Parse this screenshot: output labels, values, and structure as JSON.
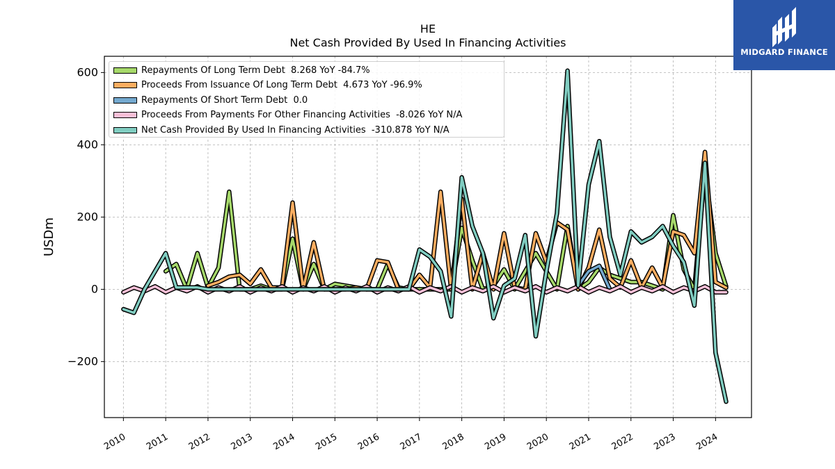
{
  "header": {
    "title_line1": "HE",
    "title_line2": "Net Cash Provided By Used In Financing Activities"
  },
  "logo": {
    "text": "MIDGARD FINANCE",
    "background": "#2a56a8"
  },
  "chart_data": {
    "type": "line",
    "title": "HE\nNet Cash Provided By Used In Financing Activities",
    "xlabel": "",
    "ylabel": "USDm",
    "xlim": [
      2009.55,
      2024.85
    ],
    "ylim": [
      -355,
      645
    ],
    "x_ticks": [
      "2010",
      "2011",
      "2012",
      "2013",
      "2014",
      "2015",
      "2016",
      "2017",
      "2018",
      "2019",
      "2020",
      "2021",
      "2022",
      "2023",
      "2024"
    ],
    "y_ticks": [
      {
        "value": -200,
        "label": "−200"
      },
      {
        "value": 0,
        "label": "0"
      },
      {
        "value": 200,
        "label": "200"
      },
      {
        "value": 400,
        "label": "400"
      },
      {
        "value": 600,
        "label": "600"
      }
    ],
    "grid": true,
    "legend_position": "top-left",
    "series": [
      {
        "name": "Repayments Of Long Term Debt",
        "legend_label": "Repayments Of Long Term Debt  8.268 YoY -84.7%",
        "color": "#a6d96a",
        "points": [
          [
            2011.0,
            50
          ],
          [
            2011.25,
            70
          ],
          [
            2011.5,
            0
          ],
          [
            2011.75,
            100
          ],
          [
            2012.0,
            5
          ],
          [
            2012.25,
            60
          ],
          [
            2012.5,
            270
          ],
          [
            2012.75,
            0
          ],
          [
            2013.0,
            0
          ],
          [
            2013.25,
            10
          ],
          [
            2013.5,
            0
          ],
          [
            2013.75,
            0
          ],
          [
            2014.0,
            140
          ],
          [
            2014.25,
            0
          ],
          [
            2014.5,
            70
          ],
          [
            2014.75,
            0
          ],
          [
            2015.0,
            15
          ],
          [
            2015.25,
            10
          ],
          [
            2015.5,
            5
          ],
          [
            2015.75,
            0
          ],
          [
            2016.0,
            0
          ],
          [
            2016.25,
            70
          ],
          [
            2016.5,
            5
          ],
          [
            2016.75,
            0
          ],
          [
            2017.0,
            0
          ],
          [
            2017.25,
            0
          ],
          [
            2017.5,
            0
          ],
          [
            2017.75,
            0
          ],
          [
            2018.0,
            170
          ],
          [
            2018.25,
            80
          ],
          [
            2018.5,
            0
          ],
          [
            2018.75,
            10
          ],
          [
            2019.0,
            55
          ],
          [
            2019.25,
            0
          ],
          [
            2019.5,
            50
          ],
          [
            2019.75,
            100
          ],
          [
            2020.0,
            50
          ],
          [
            2020.25,
            0
          ],
          [
            2020.5,
            175
          ],
          [
            2020.75,
            0
          ],
          [
            2021.0,
            20
          ],
          [
            2021.25,
            60
          ],
          [
            2021.5,
            40
          ],
          [
            2021.75,
            30
          ],
          [
            2022.0,
            20
          ],
          [
            2022.25,
            20
          ],
          [
            2022.5,
            10
          ],
          [
            2022.75,
            0
          ],
          [
            2023.0,
            205
          ],
          [
            2023.25,
            55
          ],
          [
            2023.5,
            0
          ],
          [
            2023.75,
            330
          ],
          [
            2024.0,
            100
          ],
          [
            2024.25,
            8.268
          ]
        ]
      },
      {
        "name": "Proceeds From Issuance Of Long Term Debt",
        "legend_label": "Proceeds From Issuance Of Long Term Debt  4.673 YoY -96.9%",
        "color": "#fdae61",
        "points": [
          [
            2012.0,
            10
          ],
          [
            2012.25,
            20
          ],
          [
            2012.5,
            35
          ],
          [
            2012.75,
            40
          ],
          [
            2013.0,
            15
          ],
          [
            2013.25,
            55
          ],
          [
            2013.5,
            5
          ],
          [
            2013.75,
            5
          ],
          [
            2014.0,
            240
          ],
          [
            2014.25,
            0
          ],
          [
            2014.5,
            130
          ],
          [
            2014.75,
            0
          ],
          [
            2015.0,
            0
          ],
          [
            2015.25,
            0
          ],
          [
            2015.5,
            5
          ],
          [
            2015.75,
            0
          ],
          [
            2016.0,
            80
          ],
          [
            2016.25,
            75
          ],
          [
            2016.5,
            0
          ],
          [
            2016.75,
            0
          ],
          [
            2017.0,
            40
          ],
          [
            2017.25,
            5
          ],
          [
            2017.5,
            270
          ],
          [
            2017.75,
            0
          ],
          [
            2018.0,
            250
          ],
          [
            2018.25,
            0
          ],
          [
            2018.5,
            100
          ],
          [
            2018.75,
            0
          ],
          [
            2019.0,
            155
          ],
          [
            2019.25,
            5
          ],
          [
            2019.5,
            0
          ],
          [
            2019.75,
            155
          ],
          [
            2020.0,
            75
          ],
          [
            2020.25,
            185
          ],
          [
            2020.5,
            165
          ],
          [
            2020.75,
            0
          ],
          [
            2021.0,
            60
          ],
          [
            2021.25,
            165
          ],
          [
            2021.5,
            30
          ],
          [
            2021.75,
            5
          ],
          [
            2022.0,
            80
          ],
          [
            2022.25,
            5
          ],
          [
            2022.5,
            60
          ],
          [
            2022.75,
            5
          ],
          [
            2023.0,
            160
          ],
          [
            2023.25,
            150
          ],
          [
            2023.5,
            100
          ],
          [
            2023.75,
            380
          ],
          [
            2024.0,
            20
          ],
          [
            2024.25,
            4.673
          ]
        ]
      },
      {
        "name": "Repayments Of Short Term Debt",
        "legend_label": "Repayments Of Short Term Debt  0.0",
        "color": "#74a9cf",
        "points": [
          [
            2020.75,
            10
          ],
          [
            2021.0,
            50
          ],
          [
            2021.25,
            65
          ],
          [
            2021.5,
            0
          ]
        ]
      },
      {
        "name": "Proceeds From Payments For Other Financing Activities",
        "legend_label": "Proceeds From Payments For Other Financing Activities  -8.026 YoY N/A",
        "color": "#f9c0d8",
        "points": [
          [
            2010.0,
            -8
          ],
          [
            2010.25,
            5
          ],
          [
            2010.5,
            -5
          ],
          [
            2010.75,
            8
          ],
          [
            2011.0,
            -8
          ],
          [
            2011.25,
            5
          ],
          [
            2011.5,
            -5
          ],
          [
            2011.75,
            8
          ],
          [
            2012.0,
            -8
          ],
          [
            2012.25,
            5
          ],
          [
            2012.5,
            -5
          ],
          [
            2012.75,
            8
          ],
          [
            2013.0,
            -8
          ],
          [
            2013.25,
            5
          ],
          [
            2013.5,
            -5
          ],
          [
            2013.75,
            8
          ],
          [
            2014.0,
            -8
          ],
          [
            2014.25,
            5
          ],
          [
            2014.5,
            -5
          ],
          [
            2014.75,
            8
          ],
          [
            2015.0,
            -8
          ],
          [
            2015.25,
            5
          ],
          [
            2015.5,
            -5
          ],
          [
            2015.75,
            8
          ],
          [
            2016.0,
            -8
          ],
          [
            2016.25,
            5
          ],
          [
            2016.5,
            -5
          ],
          [
            2016.75,
            8
          ],
          [
            2017.0,
            -8
          ],
          [
            2017.25,
            5
          ],
          [
            2017.5,
            -5
          ],
          [
            2017.75,
            8
          ],
          [
            2018.0,
            -8
          ],
          [
            2018.25,
            5
          ],
          [
            2018.5,
            -5
          ],
          [
            2018.75,
            8
          ],
          [
            2019.0,
            -8
          ],
          [
            2019.25,
            5
          ],
          [
            2019.5,
            -5
          ],
          [
            2019.75,
            8
          ],
          [
            2020.0,
            -8
          ],
          [
            2020.25,
            5
          ],
          [
            2020.5,
            -5
          ],
          [
            2020.75,
            8
          ],
          [
            2021.0,
            -8
          ],
          [
            2021.25,
            5
          ],
          [
            2021.5,
            -5
          ],
          [
            2021.75,
            8
          ],
          [
            2022.0,
            -8
          ],
          [
            2022.25,
            5
          ],
          [
            2022.5,
            -5
          ],
          [
            2022.75,
            8
          ],
          [
            2023.0,
            -8
          ],
          [
            2023.25,
            5
          ],
          [
            2023.5,
            -5
          ],
          [
            2023.75,
            8
          ],
          [
            2024.0,
            -8
          ],
          [
            2024.25,
            -8.026
          ]
        ]
      },
      {
        "name": "Net Cash Provided By Used In Financing Activities",
        "legend_label": "Net Cash Provided By Used In Financing Activities  -310.878 YoY N/A",
        "color": "#80cdc1",
        "points": [
          [
            2010.0,
            -55
          ],
          [
            2010.25,
            -65
          ],
          [
            2010.5,
            0
          ],
          [
            2010.75,
            50
          ],
          [
            2011.0,
            100
          ],
          [
            2011.25,
            5
          ],
          [
            2011.5,
            5
          ],
          [
            2011.75,
            5
          ],
          [
            2012.0,
            0
          ],
          [
            2012.25,
            0
          ],
          [
            2012.5,
            0
          ],
          [
            2012.75,
            0
          ],
          [
            2013.0,
            0
          ],
          [
            2013.25,
            0
          ],
          [
            2013.5,
            0
          ],
          [
            2013.75,
            0
          ],
          [
            2014.0,
            0
          ],
          [
            2014.25,
            0
          ],
          [
            2014.5,
            0
          ],
          [
            2014.75,
            0
          ],
          [
            2015.0,
            0
          ],
          [
            2015.25,
            0
          ],
          [
            2015.5,
            0
          ],
          [
            2015.75,
            0
          ],
          [
            2016.0,
            0
          ],
          [
            2016.25,
            0
          ],
          [
            2016.5,
            0
          ],
          [
            2016.75,
            0
          ],
          [
            2017.0,
            110
          ],
          [
            2017.25,
            90
          ],
          [
            2017.5,
            50
          ],
          [
            2017.75,
            -75
          ],
          [
            2018.0,
            310
          ],
          [
            2018.25,
            175
          ],
          [
            2018.5,
            100
          ],
          [
            2018.75,
            -80
          ],
          [
            2019.0,
            10
          ],
          [
            2019.25,
            30
          ],
          [
            2019.5,
            150
          ],
          [
            2019.75,
            -130
          ],
          [
            2020.0,
            50
          ],
          [
            2020.25,
            210
          ],
          [
            2020.5,
            605
          ],
          [
            2020.75,
            10
          ],
          [
            2021.0,
            290
          ],
          [
            2021.25,
            410
          ],
          [
            2021.5,
            145
          ],
          [
            2021.75,
            40
          ],
          [
            2022.0,
            160
          ],
          [
            2022.25,
            130
          ],
          [
            2022.5,
            145
          ],
          [
            2022.75,
            175
          ],
          [
            2023.0,
            120
          ],
          [
            2023.25,
            75
          ],
          [
            2023.5,
            -45
          ],
          [
            2023.75,
            350
          ],
          [
            2024.0,
            -175
          ],
          [
            2024.25,
            -310.878
          ]
        ]
      }
    ]
  }
}
